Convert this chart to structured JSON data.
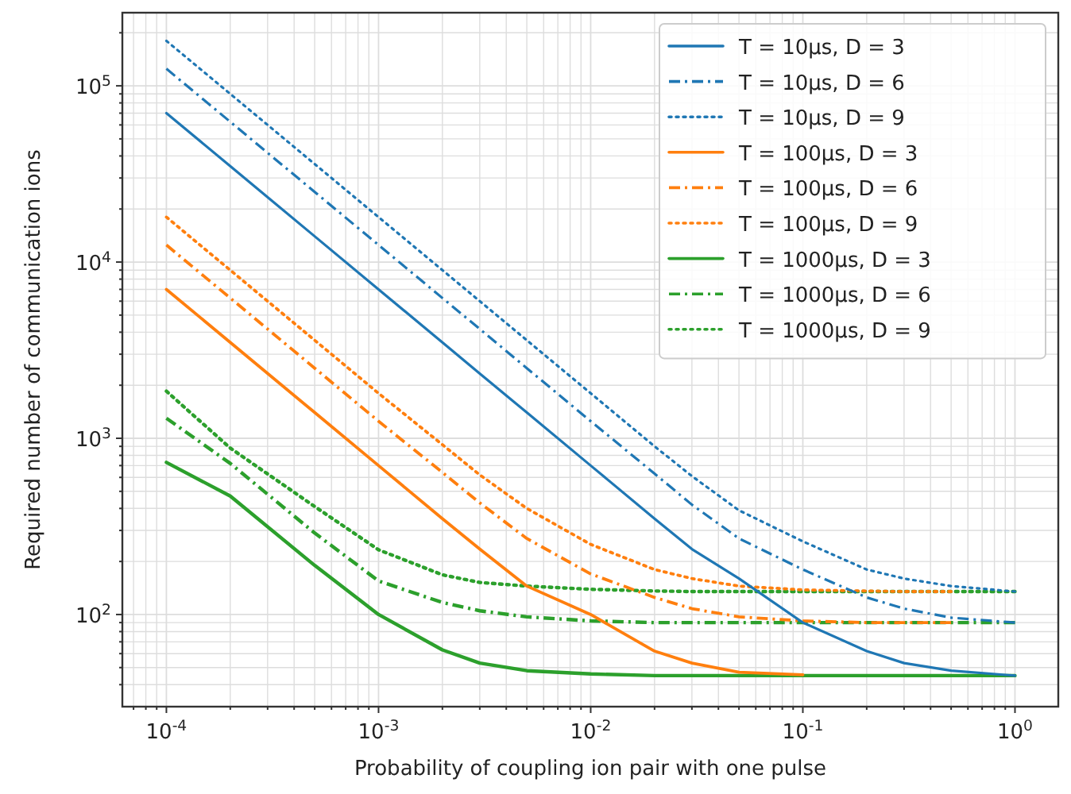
{
  "chart_data": {
    "type": "line",
    "xlabel": "Probability of coupling ion pair with one pulse",
    "ylabel": "Required number of communication ions",
    "log": "xy",
    "grid": true,
    "legend": "top right",
    "xlim": [
      6.2e-05,
      1.6
    ],
    "ylim": [
      30,
      260000
    ],
    "xticks": [
      {
        "value": 0.0001,
        "label": "10$^{-4}$"
      },
      {
        "value": 0.001,
        "label": "10$^{-3}$"
      },
      {
        "value": 0.01,
        "label": "10$^{-2}$"
      },
      {
        "value": 0.1,
        "label": "10$^{-1}$"
      },
      {
        "value": 1,
        "label": "10$^{0}$"
      },
      {
        "value": 7e-05,
        "label": null
      },
      {
        "value": 8e-05,
        "label": null
      },
      {
        "value": 9e-05,
        "label": null
      },
      {
        "value": 0.0002,
        "label": null
      },
      {
        "value": 0.0003,
        "label": null
      },
      {
        "value": 0.0004,
        "label": null
      },
      {
        "value": 0.0005,
        "label": null
      },
      {
        "value": 0.0006,
        "label": null
      },
      {
        "value": 0.0007,
        "label": null
      },
      {
        "value": 0.0008,
        "label": null
      },
      {
        "value": 0.0009,
        "label": null
      },
      {
        "value": 0.002,
        "label": null
      },
      {
        "value": 0.003,
        "label": null
      },
      {
        "value": 0.004,
        "label": null
      },
      {
        "value": 0.005,
        "label": null
      },
      {
        "value": 0.006,
        "label": null
      },
      {
        "value": 0.007,
        "label": null
      },
      {
        "value": 0.008,
        "label": null
      },
      {
        "value": 0.009,
        "label": null
      },
      {
        "value": 0.02,
        "label": null
      },
      {
        "value": 0.03,
        "label": null
      },
      {
        "value": 0.04,
        "label": null
      },
      {
        "value": 0.05,
        "label": null
      },
      {
        "value": 0.06,
        "label": null
      },
      {
        "value": 0.07,
        "label": null
      },
      {
        "value": 0.08,
        "label": null
      },
      {
        "value": 0.09,
        "label": null
      },
      {
        "value": 0.2,
        "label": null
      },
      {
        "value": 0.3,
        "label": null
      },
      {
        "value": 0.4,
        "label": null
      },
      {
        "value": 0.5,
        "label": null
      },
      {
        "value": 0.6,
        "label": null
      },
      {
        "value": 0.7,
        "label": null
      },
      {
        "value": 0.8,
        "label": null
      },
      {
        "value": 0.9,
        "label": null
      }
    ],
    "yticks": [
      {
        "value": 100,
        "label": "10$^{2}$"
      },
      {
        "value": 1000,
        "label": "10$^{3}$"
      },
      {
        "value": 10000,
        "label": "10$^{4}$"
      },
      {
        "value": 100000,
        "label": "10$^{5}$"
      },
      {
        "value": 40,
        "label": null
      },
      {
        "value": 50,
        "label": null
      },
      {
        "value": 60,
        "label": null
      },
      {
        "value": 70,
        "label": null
      },
      {
        "value": 80,
        "label": null
      },
      {
        "value": 90,
        "label": null
      },
      {
        "value": 200,
        "label": null
      },
      {
        "value": 300,
        "label": null
      },
      {
        "value": 400,
        "label": null
      },
      {
        "value": 500,
        "label": null
      },
      {
        "value": 600,
        "label": null
      },
      {
        "value": 700,
        "label": null
      },
      {
        "value": 800,
        "label": null
      },
      {
        "value": 900,
        "label": null
      },
      {
        "value": 2000,
        "label": null
      },
      {
        "value": 3000,
        "label": null
      },
      {
        "value": 4000,
        "label": null
      },
      {
        "value": 5000,
        "label": null
      },
      {
        "value": 6000,
        "label": null
      },
      {
        "value": 7000,
        "label": null
      },
      {
        "value": 8000,
        "label": null
      },
      {
        "value": 9000,
        "label": null
      },
      {
        "value": 20000,
        "label": null
      },
      {
        "value": 30000,
        "label": null
      },
      {
        "value": 40000,
        "label": null
      },
      {
        "value": 50000,
        "label": null
      },
      {
        "value": 60000,
        "label": null
      },
      {
        "value": 70000,
        "label": null
      },
      {
        "value": 80000,
        "label": null
      },
      {
        "value": 90000,
        "label": null
      },
      {
        "value": 200000,
        "label": null
      }
    ],
    "x": [
      0.0001,
      0.0002,
      0.0005,
      0.001,
      0.002,
      0.003,
      0.005,
      0.01,
      0.02,
      0.03,
      0.05,
      0.1,
      0.2,
      0.3,
      0.5,
      1
    ],
    "series": [
      {
        "name": "T = 10μs, D = 3",
        "color": "#1f77b4",
        "line_style": "solid",
        "values": [
          70000,
          35000,
          14000,
          7000,
          3500,
          2330,
          1400,
          700,
          350,
          235,
          160,
          90,
          62,
          53,
          48,
          45
        ]
      },
      {
        "name": "T = 10μs, D = 6",
        "color": "#1f77b4",
        "line_style": "dashdot",
        "values": [
          125000,
          62500,
          25000,
          12500,
          6250,
          4170,
          2500,
          1250,
          630,
          420,
          270,
          180,
          125,
          108,
          96,
          90
        ]
      },
      {
        "name": "T = 10μs, D = 9",
        "color": "#1f77b4",
        "line_style": "dotted",
        "values": [
          180000,
          90000,
          36000,
          18000,
          9000,
          6000,
          3600,
          1800,
          900,
          610,
          390,
          260,
          180,
          160,
          145,
          135
        ]
      },
      {
        "name": "T = 100μs, D = 3",
        "color": "#ff7f0e",
        "line_style": "solid",
        "values": [
          7000,
          3500,
          1400,
          700,
          350,
          235,
          145,
          100,
          62,
          53,
          47,
          45.5,
          null,
          null,
          null,
          null
        ]
      },
      {
        "name": "T = 100μs, D = 6",
        "color": "#ff7f0e",
        "line_style": "dashdot",
        "values": [
          12500,
          6250,
          2500,
          1250,
          640,
          430,
          270,
          170,
          125,
          108,
          97,
          92,
          90,
          90,
          90,
          null
        ]
      },
      {
        "name": "T = 100μs, D = 9",
        "color": "#ff7f0e",
        "line_style": "dotted",
        "values": [
          18000,
          9000,
          3600,
          1800,
          920,
          620,
          400,
          250,
          180,
          160,
          145,
          138,
          136,
          135,
          135,
          null
        ]
      },
      {
        "name": "T = 1000μs, D = 3",
        "color": "#2ca02c",
        "line_style": "solid",
        "values": [
          730,
          470,
          190,
          100,
          63,
          53,
          48,
          46,
          45,
          45,
          45,
          45,
          45,
          45,
          45,
          45
        ]
      },
      {
        "name": "T = 1000μs, D = 6",
        "color": "#2ca02c",
        "line_style": "dashdot",
        "values": [
          1300,
          720,
          290,
          155,
          117,
          105,
          97,
          92,
          90,
          90,
          90,
          90,
          90,
          90,
          90,
          90
        ]
      },
      {
        "name": "T = 1000μs, D = 9",
        "color": "#2ca02c",
        "line_style": "dotted",
        "values": [
          1850,
          880,
          410,
          233,
          168,
          152,
          145,
          139,
          136,
          135,
          135,
          135,
          135,
          135,
          135,
          135
        ]
      }
    ]
  }
}
